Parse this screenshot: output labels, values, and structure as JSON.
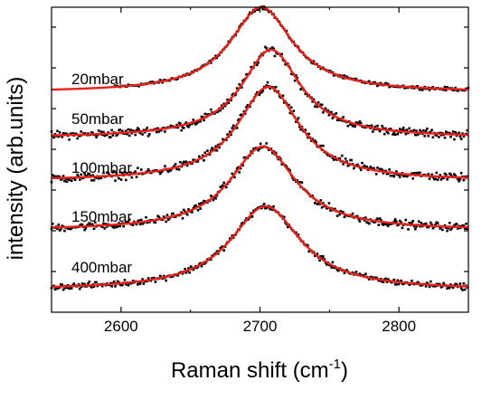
{
  "chart_data": {
    "type": "scatter",
    "title": "",
    "xlabel": "Raman shift (cm",
    "xlabel_sup": "-1",
    "xlabel_end": ")",
    "ylabel": "intensity (arb.units)",
    "xlim": [
      2550,
      2850
    ],
    "x_ticks": [
      2600,
      2700,
      2800
    ],
    "x_tick_labels": [
      "2600",
      "2700",
      "2800"
    ],
    "y_ticks_count": 7,
    "y_tick_labels_shown": false,
    "grid": false,
    "legend": "none",
    "marker_color": "#000000",
    "fit_color": "#e8211a",
    "series": [
      {
        "name": "20mbar",
        "peak_x": 2701,
        "fwhm": 55,
        "baseline": 0.17,
        "amplitude": 1.0,
        "noise": 0.012
      },
      {
        "name": "50mbar",
        "peak_x": 2708,
        "fwhm": 52,
        "baseline": 0.14,
        "amplitude": 0.86,
        "noise": 0.03
      },
      {
        "name": "100mbar",
        "peak_x": 2706,
        "fwhm": 55,
        "baseline": 0.11,
        "amplitude": 0.88,
        "noise": 0.03
      },
      {
        "name": "150mbar",
        "peak_x": 2702,
        "fwhm": 58,
        "baseline": 0.12,
        "amplitude": 0.83,
        "noise": 0.03
      },
      {
        "name": "400mbar",
        "peak_x": 2704,
        "fwhm": 62,
        "baseline": 0.05,
        "amplitude": 0.85,
        "noise": 0.025
      }
    ]
  }
}
